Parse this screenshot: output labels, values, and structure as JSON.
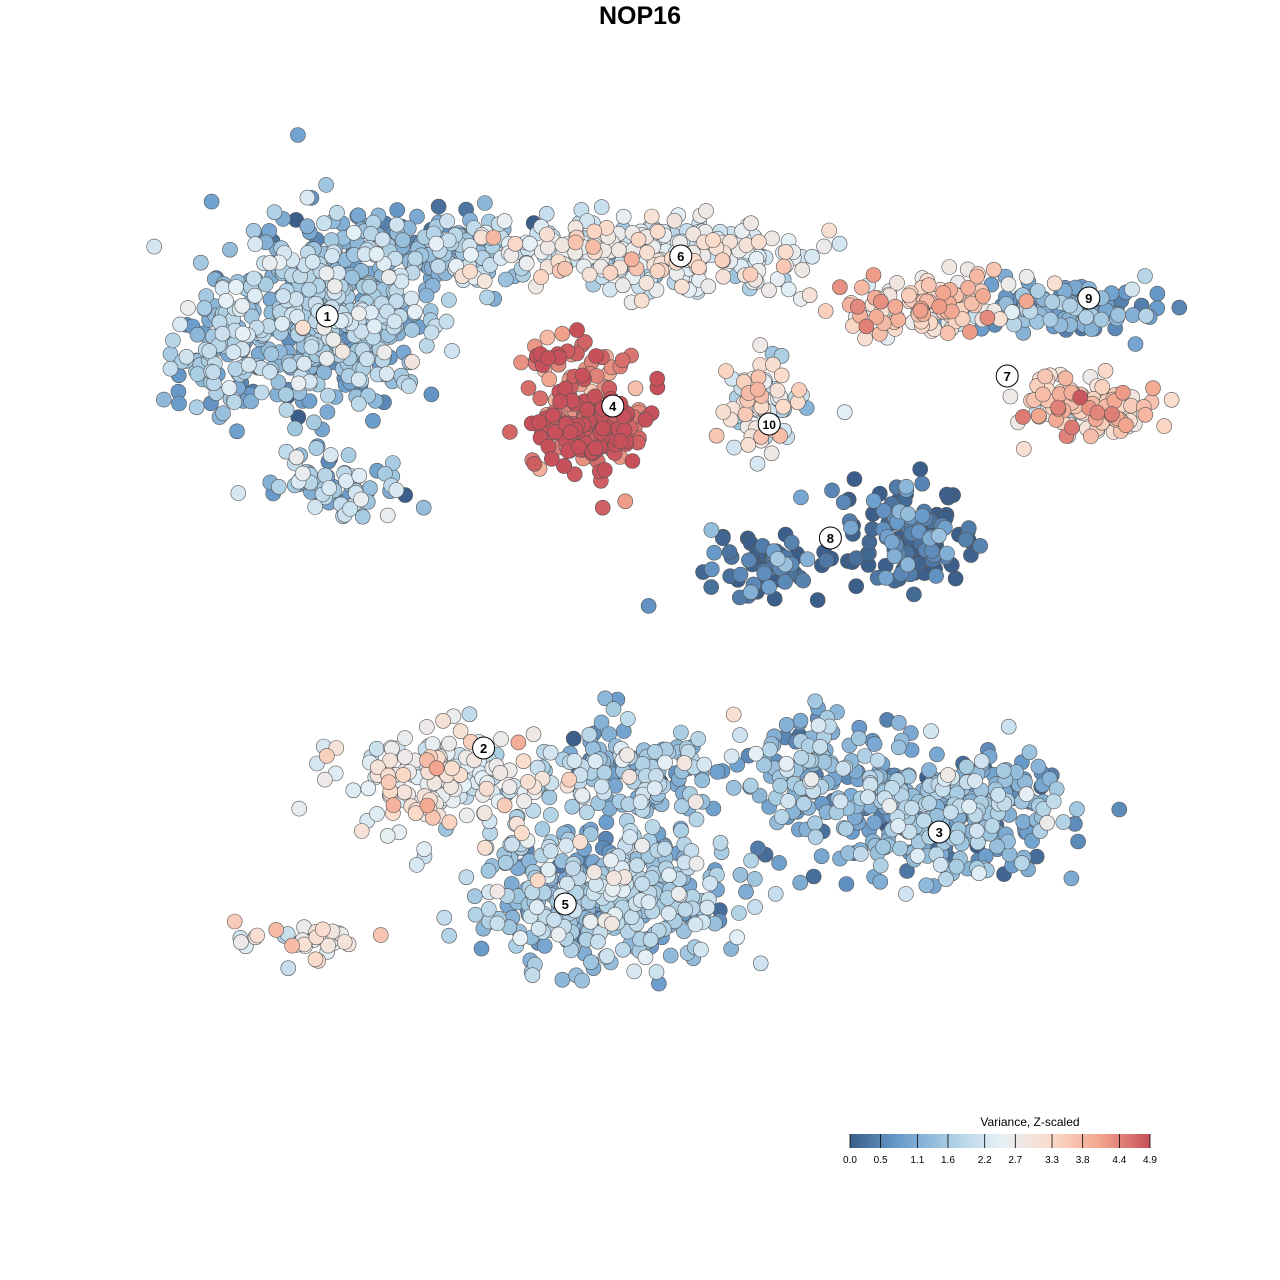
{
  "chart_data": {
    "type": "scatter",
    "title": "NOP16",
    "xlabel": "",
    "ylabel": "",
    "grid": false,
    "legend_placement": "bottom-right",
    "colorbar": {
      "title": "Variance, Z-scaled",
      "range": [
        0.0,
        4.9
      ],
      "tick_labels": [
        "0.0",
        "0.5",
        "1.1",
        "1.6",
        "2.2",
        "2.7",
        "3.3",
        "3.8",
        "4.4",
        "4.9"
      ],
      "colors": [
        "#3b5f8a",
        "#6a9ccc",
        "#a9cde3",
        "#e5f0f7",
        "#fbdccb",
        "#f2a58e",
        "#c8505a"
      ]
    },
    "clusters": [
      {
        "label": "1",
        "x": -4.6,
        "y": 5.4,
        "level": 1.4
      },
      {
        "label": "2",
        "x": -2.3,
        "y": -1.8,
        "level": 2.6
      },
      {
        "label": "3",
        "x": 4.4,
        "y": -3.2,
        "level": 1.2
      },
      {
        "label": "4",
        "x": -0.4,
        "y": 3.9,
        "level": 4.7
      },
      {
        "label": "5",
        "x": -1.1,
        "y": -4.4,
        "level": 1.5
      },
      {
        "label": "6",
        "x": 0.6,
        "y": 6.4,
        "level": 2.4
      },
      {
        "label": "7",
        "x": 5.4,
        "y": 4.4,
        "level": 3.3
      },
      {
        "label": "8",
        "x": 2.8,
        "y": 1.7,
        "level": 0.2
      },
      {
        "label": "9",
        "x": 6.6,
        "y": 5.7,
        "level": 1.0
      },
      {
        "label": "10",
        "x": 1.9,
        "y": 3.6,
        "level": 2.6
      }
    ]
  }
}
